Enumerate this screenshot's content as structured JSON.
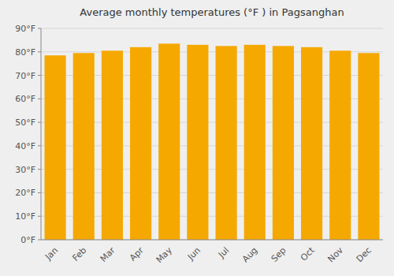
{
  "chart_data": {
    "type": "bar",
    "title": "Average monthly temperatures (°F ) in Pagsanghan",
    "categories": [
      "Jan",
      "Feb",
      "Mar",
      "Apr",
      "May",
      "Jun",
      "Jul",
      "Aug",
      "Sep",
      "Oct",
      "Nov",
      "Dec"
    ],
    "values": [
      78.5,
      79.5,
      80.5,
      82.0,
      83.5,
      83.0,
      82.5,
      83.0,
      82.5,
      82.0,
      80.5,
      79.5
    ],
    "color": "#F5A800",
    "ylim": [
      0,
      90
    ],
    "yticks": [
      {
        "value": 0,
        "label": "0°F"
      },
      {
        "value": 10,
        "label": "10°F"
      },
      {
        "value": 20,
        "label": "20°F"
      },
      {
        "value": 30,
        "label": "30°F"
      },
      {
        "value": 40,
        "label": "40°F"
      },
      {
        "value": 50,
        "label": "50°F"
      },
      {
        "value": 60,
        "label": "60°F"
      },
      {
        "value": 70,
        "label": "70°F"
      },
      {
        "value": 80,
        "label": "80°F"
      },
      {
        "value": 90,
        "label": "90°F"
      }
    ],
    "grid": true
  }
}
